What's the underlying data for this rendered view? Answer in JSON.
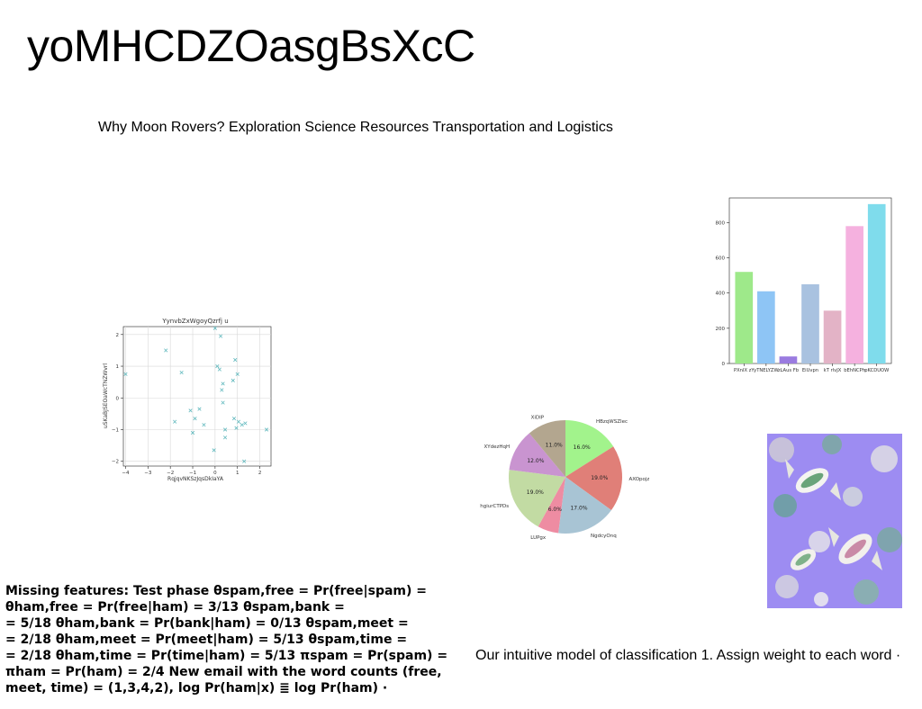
{
  "title": "yoMHCDZOasgBsXcC",
  "subtitle": "Why Moon Rovers? Exploration Science Resources Transportation and Logistics",
  "bottom_left_lines": [
    "Missing features: Test phase θspam,free = Pr(free|spam) =",
    "θham,free = Pr(free|ham) = 3/13 θspam,bank =",
    "= 5/18 θham,bank = Pr(bank|ham) = 0/13 θspam,meet =",
    "= 2/18 θham,meet = Pr(meet|ham) = 5/13 θspam,time =",
    "= 2/18 θham,time = Pr(time|ham) = 5/13 πspam = Pr(spam) =",
    "πham = Pr(ham) = 2/4 New email with the word counts (free,",
    "meet, time) = (1,3,4,2), log Pr(ham|x) ≣ log Pr(ham) ·"
  ],
  "bottom_right": "Our intuitive model of classification 1. Assign weight to each word ·",
  "photo": {
    "description_icon": "candy-photo-icon",
    "bg": "#9d8cf2"
  },
  "chart_data": [
    {
      "type": "scatter",
      "title": "YynvbZxWgoyQzrfj u",
      "xlabel": "RqjqvNKSzJqsDkIaYA",
      "ylabel": "uSKaBJSEOaWcTNZWvrl",
      "xlim": [
        -4.1,
        2.5
      ],
      "ylim": [
        -2.15,
        2.25
      ],
      "xticks": [
        -4,
        -3,
        -2,
        -1,
        0,
        1,
        2
      ],
      "yticks": [
        -2,
        -1,
        0,
        1,
        2
      ],
      "grid": true,
      "marker": "x",
      "color": "#5fb8bd",
      "points": [
        [
          -4.0,
          0.75
        ],
        [
          -2.2,
          1.5
        ],
        [
          -1.5,
          0.8
        ],
        [
          -1.8,
          -0.75
        ],
        [
          -1.1,
          -0.4
        ],
        [
          -0.9,
          -0.65
        ],
        [
          -0.7,
          -0.35
        ],
        [
          -1.0,
          -1.1
        ],
        [
          -0.5,
          -0.85
        ],
        [
          -0.05,
          -1.65
        ],
        [
          0.0,
          2.2
        ],
        [
          0.25,
          1.95
        ],
        [
          0.1,
          1.0
        ],
        [
          0.2,
          0.9
        ],
        [
          0.35,
          0.45
        ],
        [
          0.3,
          0.25
        ],
        [
          0.35,
          -0.15
        ],
        [
          0.45,
          -1.0
        ],
        [
          0.45,
          -1.25
        ],
        [
          0.8,
          0.55
        ],
        [
          0.9,
          1.2
        ],
        [
          1.0,
          0.75
        ],
        [
          0.85,
          -0.65
        ],
        [
          0.95,
          -0.95
        ],
        [
          1.05,
          -0.75
        ],
        [
          1.2,
          -0.85
        ],
        [
          1.3,
          -2.0
        ],
        [
          1.35,
          -0.8
        ],
        [
          2.3,
          -1.0
        ]
      ]
    },
    {
      "type": "bar",
      "categories": [
        "PXnIX zY",
        "yTNELYZW",
        "zLAus Fb",
        "EiUvpn",
        "kT rlvJX",
        "bEhNCPh",
        "pKCDUOW"
      ],
      "values": [
        520,
        410,
        40,
        450,
        300,
        780,
        905
      ],
      "colors": [
        "#9ee98a",
        "#8ec5f5",
        "#9a7be0",
        "#a9c2e0",
        "#e3b3c6",
        "#f5b1df",
        "#7fdcec"
      ],
      "ylim": [
        0,
        940
      ],
      "yticks": [
        0,
        200,
        400,
        600,
        800
      ],
      "grid": false
    },
    {
      "type": "pie",
      "labels": [
        "HBzqWSZIec",
        "AXOpojz",
        "NgdcyOnq",
        "LUPgx",
        "hgiurCTPDs",
        "XYdezHqH",
        "XiDIP"
      ],
      "values": [
        16.0,
        19.0,
        17.0,
        6.0,
        19.0,
        12.0,
        11.0
      ],
      "pct_labels": [
        "16.0%",
        "19.0%",
        "17.0%",
        "6.0%",
        "19.0%",
        "12.0%",
        "11.0%"
      ],
      "colors": [
        "#a2f38c",
        "#e07f78",
        "#a8c4d4",
        "#ee8ca2",
        "#c2dba3",
        "#c994d0",
        "#b3a68f"
      ]
    }
  ]
}
